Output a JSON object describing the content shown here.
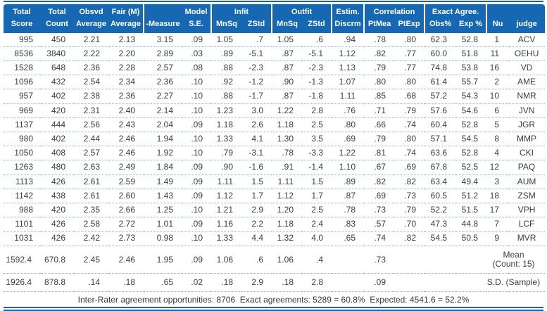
{
  "colors": {
    "header_bg": "#1568b1",
    "header_text": "#ffffff",
    "rule_blue": "#1f63a8",
    "dotted_separator": "#86aed6",
    "body_text": "#3d3d3d"
  },
  "table": {
    "column_keys": [
      "total-score",
      "total-count",
      "obsvd-average",
      "fair-average",
      "measure",
      "model-se",
      "infit-mnsq",
      "infit-zstd",
      "outfit-mnsq",
      "outfit-zstd",
      "estim-discrm",
      "ptmea",
      "ptexp",
      "exact-obs-pct",
      "exact-exp-pct",
      "nu",
      "judge"
    ],
    "header": {
      "row1": {
        "c1": "Total",
        "c2": "Total",
        "c3": "Obsvd",
        "c4": "Fair (M)",
        "c5": "",
        "c6": "Model",
        "infit": "Infit",
        "outfit": "Outfit",
        "estim": "Estim.",
        "correlation": "Correlation",
        "exact": "Exact Agree.",
        "right_blank": ""
      },
      "row2": {
        "c1": "Score",
        "c2": "Count",
        "c3": "Average",
        "c4": "Average",
        "c5": "-Measure",
        "c6": "S.E.",
        "c7": "MnSq",
        "c8": "ZStd",
        "c9": "MnSq",
        "c10": "ZStd",
        "c11": "Discrm",
        "c12": "PtMea",
        "c13": "PtExp",
        "c14": "Obs%",
        "c15": "Exp %",
        "c16": "Nu",
        "c17": "judge"
      }
    },
    "rows": [
      [
        "995",
        "450",
        "2.21",
        "2.13",
        "3.15",
        ".09",
        "1.05",
        ".7",
        "1.05",
        ".6",
        ".94",
        ".78",
        ".80",
        "62.3",
        "52.8",
        "1",
        "ACV"
      ],
      [
        "8536",
        "3840",
        "2.22",
        "2.20",
        "2.89",
        ".03",
        ".89",
        "-5.1",
        ".87",
        "-5.1",
        "1.12",
        ".82",
        ".77",
        "60.0",
        "51.8",
        "11",
        "OEHU"
      ],
      [
        "1528",
        "648",
        "2.36",
        "2.28",
        "2.57",
        ".08",
        ".88",
        "-2.3",
        ".87",
        "-2.3",
        "1.13",
        ".79",
        ".77",
        "74.8",
        "53.8",
        "16",
        "VD"
      ],
      [
        "1096",
        "432",
        "2.54",
        "2.34",
        "2.36",
        ".10",
        ".92",
        "-1.2",
        ".90",
        "-1.3",
        "1.07",
        ".80",
        ".80",
        "61.4",
        "55.7",
        "2",
        "AME"
      ],
      [
        "957",
        "402",
        "2.38",
        "2.36",
        "2.27",
        ".10",
        ".88",
        "-1.7",
        ".87",
        "-1.8",
        "1.11",
        ".85",
        ".68",
        "57.2",
        "54.3",
        "10",
        "NMR"
      ],
      [
        "969",
        "420",
        "2.31",
        "2.40",
        "2.14",
        ".10",
        "1.23",
        "3.0",
        "1.22",
        "2.8",
        ".76",
        ".71",
        ".79",
        "57.6",
        "54.6",
        "6",
        "JVN"
      ],
      [
        "1137",
        "444",
        "2.56",
        "2.43",
        "2.04",
        ".09",
        "1.18",
        "2.6",
        "1.18",
        "2.5",
        ".80",
        ".66",
        ".74",
        "60.4",
        "52.8",
        "5",
        "JGR"
      ],
      [
        "980",
        "402",
        "2.44",
        "2.46",
        "1.94",
        ".10",
        "1.33",
        "4.1",
        "1.30",
        "3.5",
        ".69",
        ".79",
        ".80",
        "57.1",
        "54.5",
        "8",
        "MMP"
      ],
      [
        "1050",
        "408",
        "2.57",
        "2.46",
        "1.92",
        ".10",
        ".79",
        "-3.1",
        ".78",
        "-3.3",
        "1.22",
        ".81",
        ".74",
        "63.6",
        "52.8",
        "4",
        "CKI"
      ],
      [
        "1263",
        "480",
        "2.63",
        "2.49",
        "1.84",
        ".09",
        ".90",
        "-1.6",
        ".91",
        "-1.4",
        "1.10",
        ".67",
        ".69",
        "67.8",
        "52.5",
        "12",
        "PAQ"
      ],
      [
        "1113",
        "426",
        "2.61",
        "2.59",
        "1.49",
        ".09",
        "1.11",
        "1.5",
        "1.11",
        "1.5",
        ".89",
        ".82",
        ".82",
        "63.4",
        "49.4",
        "3",
        "AUM"
      ],
      [
        "1142",
        "438",
        "2.61",
        "2.60",
        "1.43",
        ".09",
        "1.12",
        "1.7",
        "1.12",
        "1.7",
        ".87",
        ".69",
        ".73",
        "60.5",
        "51.2",
        "18",
        "ZSM"
      ],
      [
        "988",
        "420",
        "2.35",
        "2.66",
        "1.25",
        ".10",
        "1.21",
        "2.9",
        "1.20",
        "2.5",
        ".78",
        ".73",
        ".79",
        "52.2",
        "51.5",
        "17",
        "VPH"
      ],
      [
        "1101",
        "426",
        "2.58",
        "2.72",
        "1.01",
        ".09",
        "1.16",
        "2.2",
        "1.18",
        "2.4",
        ".83",
        ".57",
        ".70",
        "47.3",
        "44.8",
        "7",
        "LCF"
      ],
      [
        "1031",
        "426",
        "2.42",
        "2.73",
        "0.98",
        ".10",
        "1.33",
        "4.4",
        "1.32",
        "4.0",
        ".65",
        ".74",
        ".82",
        "54.5",
        "50.5",
        "9",
        "MVR"
      ]
    ],
    "summary": [
      {
        "values": [
          "1592.4",
          "670.8",
          "2.45",
          "2.46",
          "1.95",
          ".09",
          "1.06",
          ".6",
          "1.06",
          ".4",
          "",
          ".73",
          "",
          "",
          ""
        ],
        "label": "Mean\n(Count: 15)"
      },
      {
        "values": [
          "1926.4",
          "878.8",
          ".14",
          ".18",
          ".65",
          ".02",
          ".18",
          "2.9",
          ".18",
          "2.8",
          "",
          ".09",
          "",
          "",
          ""
        ],
        "label": "S.D. (Sample)"
      }
    ],
    "footer": "Inter-Rater agreement opportunities: 8706  Exact agreements: 5289 = 60.8%  Expected: 4541.6 = 52.2%"
  }
}
